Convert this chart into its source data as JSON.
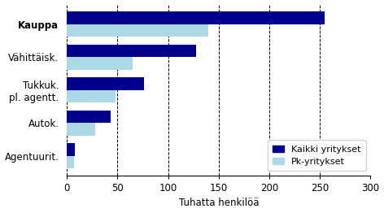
{
  "categories": [
    "Kauppa",
    "Vähittäisk.",
    "Tukkuk.\npl. agentt.",
    "Autok.",
    "Agentuurit."
  ],
  "kaikki": [
    255,
    128,
    76,
    43,
    8
  ],
  "pk": [
    140,
    65,
    48,
    28,
    7
  ],
  "color_kaikki": "#00008B",
  "color_pk": "#ADD8E6",
  "xlabel": "Tuhatta henkilöä",
  "xlim": [
    0,
    300
  ],
  "xticks": [
    0,
    50,
    100,
    150,
    200,
    250,
    300
  ],
  "legend_kaikki": "Kaikki yritykset",
  "legend_pk": "Pk-yritykset",
  "background_color": "#ffffff"
}
